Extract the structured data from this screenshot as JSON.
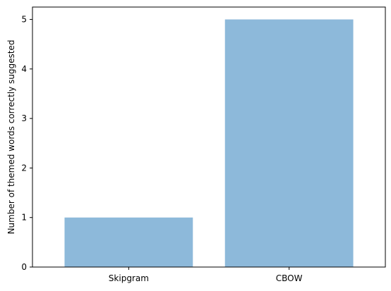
{
  "chart_data": {
    "type": "bar",
    "categories": [
      "Skipgram",
      "CBOW"
    ],
    "values": [
      1,
      5
    ],
    "title": "",
    "xlabel": "",
    "ylabel": "Number of themed words correctly suggested",
    "ylim": [
      0,
      5.25
    ],
    "yticks": [
      "0",
      "1",
      "2",
      "3",
      "4",
      "5"
    ],
    "bar_color": "#8db9da",
    "grid": false
  }
}
